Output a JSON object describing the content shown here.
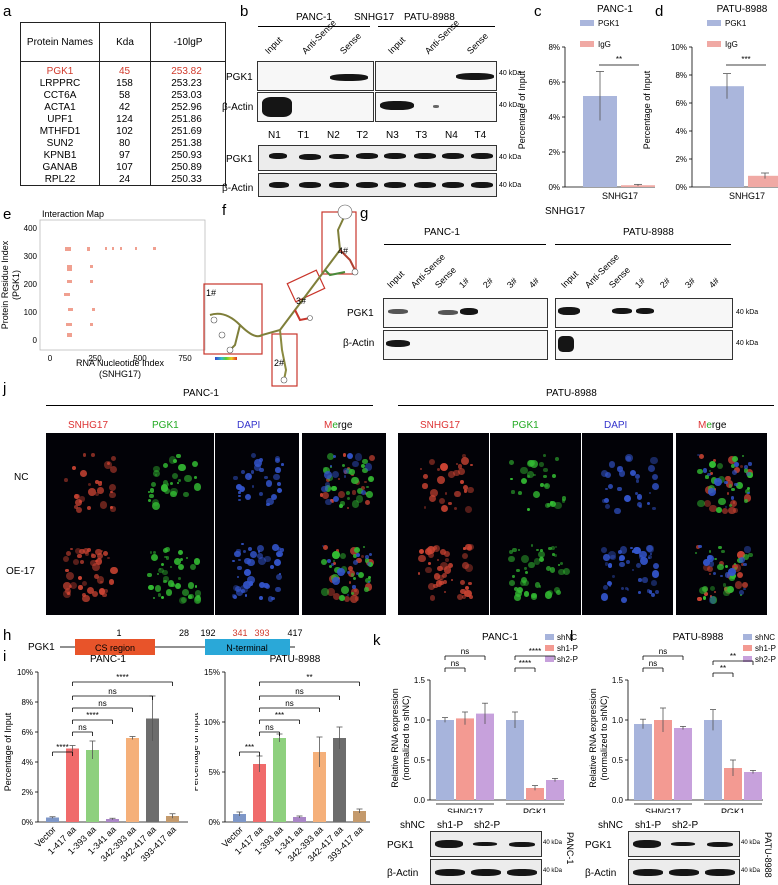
{
  "panel_letters": {
    "a": "a",
    "b": "b",
    "c": "c",
    "d": "d",
    "e": "e",
    "f": "f",
    "g": "g",
    "h": "h",
    "i": "i",
    "j": "j",
    "k": "k",
    "l": "l"
  },
  "table": {
    "headers": [
      "Protein Names",
      "Kda",
      "-10lgP"
    ],
    "rows": [
      [
        "PGK1",
        "45",
        "253.82"
      ],
      [
        "LRPPRC",
        "158",
        "253.23"
      ],
      [
        "CCT6A",
        "58",
        "253.03"
      ],
      [
        "ACTA1",
        "42",
        "252.96"
      ],
      [
        "UPF1",
        "124",
        "251.86"
      ],
      [
        "MTHFD1",
        "102",
        "251.69"
      ],
      [
        "SUN2",
        "80",
        "251.38"
      ],
      [
        "KPNB1",
        "97",
        "250.93"
      ],
      [
        "GANAB",
        "107",
        "250.89"
      ],
      [
        "RPL22",
        "24",
        "250.33"
      ]
    ],
    "highlight_color": "#d0392b"
  },
  "panel_b": {
    "title": "SNHG17",
    "cell_left": "PANC-1",
    "cell_right": "PATU-8988",
    "lanes": [
      "Input",
      "Anti-Sense",
      "Sense",
      "Input",
      "Anti-Sense",
      "Sense"
    ],
    "row1": "PGK1",
    "row2": "β-Actin",
    "kda": "40 kDa",
    "tissue_lanes": [
      "N1",
      "T1",
      "N2",
      "T2",
      "N3",
      "T3",
      "N4",
      "T4"
    ]
  },
  "panel_c": {
    "title": "PANC-1",
    "ylabel": "Percentage of Input",
    "xlabel": "SNHG17",
    "legend": [
      "PGK1",
      "IgG"
    ],
    "sig": "**",
    "yticks": [
      "0%",
      "2%",
      "4%",
      "6%",
      "8%"
    ]
  },
  "panel_d": {
    "title": "PATU-8988",
    "ylabel": "Percentage of Input",
    "xlabel": "SNHG17",
    "legend": [
      "PGK1",
      "IgG"
    ],
    "sig": "***",
    "yticks": [
      "0%",
      "2%",
      "4%",
      "6%",
      "8%",
      "10%"
    ]
  },
  "panel_e": {
    "title": "Interaction Map",
    "ylabel1": "Protein Residue Index",
    "ylabel2": "(PGK1)",
    "xlabel1": "RNA Nucleotide Index",
    "xlabel2": "(SNHG17)",
    "xticks": [
      "0",
      "250",
      "500",
      "750"
    ],
    "yticks": [
      "0",
      "100",
      "200",
      "300",
      "400"
    ]
  },
  "panel_f": {
    "labels": [
      "1#",
      "2#",
      "3#",
      "4#"
    ]
  },
  "panel_g": {
    "title": "SNHG17",
    "cell_left": "PANC-1",
    "cell_right": "PATU-8988",
    "lanes": [
      "Input",
      "Anti-Sense",
      "Sense",
      "1#",
      "2#",
      "3#",
      "4#"
    ],
    "row1": "PGK1",
    "row2": "β-Actin",
    "kda": "40 kDa"
  },
  "panel_j": {
    "cell_left": "PANC-1",
    "cell_right": "PATU-8988",
    "channels": [
      "SNHG17",
      "PGK1",
      "DAPI",
      "Merge"
    ],
    "rows": [
      "NC",
      "OE-17"
    ],
    "merge_letters": [
      "M",
      "e",
      "r",
      "g",
      "e"
    ]
  },
  "panel_h": {
    "protein": "PGK1",
    "ticks": [
      "1",
      "28",
      "192",
      "341",
      "393",
      "417"
    ],
    "domains": [
      "CS region",
      "N-terminal"
    ]
  },
  "panel_i": {
    "left_title": "PANC-1",
    "right_title": "PATU-8988",
    "ylabel": "Percentage of Input",
    "categories": [
      "Vector",
      "1-417 aa",
      "1-393 aa",
      "1-341 aa",
      "342-393 aa",
      "342-417 aa",
      "393-417 aa"
    ],
    "left_yticks": [
      "0%",
      "2%",
      "4%",
      "6%",
      "8%",
      "10%"
    ],
    "right_yticks": [
      "0%",
      "5%",
      "10%",
      "15%"
    ],
    "left_sig": [
      "****",
      "ns",
      "****",
      "ns",
      "ns",
      "****"
    ],
    "right_sig": [
      "***",
      "ns",
      "***",
      "ns",
      "ns",
      "**"
    ]
  },
  "panel_k": {
    "title": "PANC-1",
    "ylabel1": "Relative RNA expression",
    "ylabel2": "(normalized to shNC)",
    "groups": [
      "SHNG17",
      "PGK1"
    ],
    "legend": [
      "shNC",
      "sh1-P",
      "sh2-P"
    ],
    "yticks": [
      "0.0",
      "0.5",
      "1.0",
      "1.5"
    ],
    "sig": [
      "ns",
      "ns",
      "****",
      "****"
    ],
    "blot_lanes": [
      "shNC",
      "sh1-P",
      "sh2-P"
    ],
    "blot_rows": [
      "PGK1",
      "β-Actin"
    ],
    "kda": "40 kDa",
    "side": "PANC-1"
  },
  "panel_l": {
    "title": "PATU-8988",
    "ylabel1": "Relative RNA expression",
    "ylabel2": "(normalized to shNC)",
    "groups": [
      "SHNG17",
      "PGK1"
    ],
    "legend": [
      "shNC",
      "sh1-P",
      "sh2-P"
    ],
    "yticks": [
      "0.0",
      "0.5",
      "1.0",
      "1.5"
    ],
    "sig": [
      "ns",
      "ns",
      "**",
      "**"
    ],
    "blot_lanes": [
      "shNC",
      "sh1-P",
      "sh2-P"
    ],
    "blot_rows": [
      "PGK1",
      "β-Actin"
    ],
    "kda": "40 kDa",
    "side": "PATU-8988"
  },
  "chart_data": [
    {
      "type": "bar",
      "panel": "c",
      "title": "PANC-1",
      "categories": [
        "SNHG17"
      ],
      "series": [
        {
          "name": "PGK1",
          "values": [
            5.2
          ],
          "error": [
            1.4
          ]
        },
        {
          "name": "IgG",
          "values": [
            0.1
          ],
          "error": [
            0.05
          ]
        }
      ],
      "ylabel": "Percentage of Input",
      "ylim": [
        0,
        8
      ],
      "colors": [
        "#aab6dc",
        "#f0a9a4"
      ]
    },
    {
      "type": "bar",
      "panel": "d",
      "title": "PATU-8988",
      "categories": [
        "SNHG17"
      ],
      "series": [
        {
          "name": "PGK1",
          "values": [
            7.2
          ],
          "error": [
            0.9
          ]
        },
        {
          "name": "IgG",
          "values": [
            0.8
          ],
          "error": [
            0.2
          ]
        }
      ],
      "ylabel": "Percentage of Input",
      "ylim": [
        0,
        10
      ],
      "colors": [
        "#aab6dc",
        "#f0a9a4"
      ]
    },
    {
      "type": "bar",
      "panel": "i-left",
      "title": "PANC-1",
      "categories": [
        "Vector",
        "1-417 aa",
        "1-393 aa",
        "1-341 aa",
        "342-393 aa",
        "342-417 aa",
        "393-417 aa"
      ],
      "values": [
        0.3,
        4.9,
        4.8,
        0.2,
        5.6,
        6.9,
        0.4
      ],
      "errors": [
        0.05,
        0.2,
        0.6,
        0.05,
        0.1,
        1.5,
        0.15
      ],
      "ylim": [
        0,
        10
      ],
      "colors": [
        "#7e97c8",
        "#f06b6b",
        "#8ed07e",
        "#a985c6",
        "#f5b07a",
        "#6d6d6d",
        "#c49a6c"
      ]
    },
    {
      "type": "bar",
      "panel": "i-right",
      "title": "PATU-8988",
      "categories": [
        "Vector",
        "1-417 aa",
        "1-393 aa",
        "1-341 aa",
        "342-393 aa",
        "342-417 aa",
        "393-417 aa"
      ],
      "values": [
        0.8,
        5.8,
        8.4,
        0.5,
        7.0,
        8.4,
        1.1
      ],
      "errors": [
        0.2,
        0.8,
        0.4,
        0.1,
        1.5,
        1.1,
        0.2
      ],
      "ylim": [
        0,
        15
      ],
      "colors": [
        "#7e97c8",
        "#f06b6b",
        "#8ed07e",
        "#a985c6",
        "#f5b07a",
        "#6d6d6d",
        "#c49a6c"
      ]
    },
    {
      "type": "bar",
      "panel": "k",
      "title": "PANC-1",
      "categories": [
        "SHNG17",
        "PGK1"
      ],
      "series": [
        {
          "name": "shNC",
          "values": [
            1.0,
            1.0
          ],
          "error": [
            0.03,
            0.1
          ]
        },
        {
          "name": "sh1-P",
          "values": [
            1.02,
            0.15
          ],
          "error": [
            0.08,
            0.03
          ]
        },
        {
          "name": "sh2-P",
          "values": [
            1.08,
            0.25
          ],
          "error": [
            0.13,
            0.02
          ]
        }
      ],
      "ylim": [
        0,
        1.5
      ],
      "colors": [
        "#a7b4dc",
        "#f39a92",
        "#c7a1dc"
      ]
    },
    {
      "type": "bar",
      "panel": "l",
      "title": "PATU-8988",
      "categories": [
        "SHNG17",
        "PGK1"
      ],
      "series": [
        {
          "name": "shNC",
          "values": [
            0.95,
            1.0
          ],
          "error": [
            0.06,
            0.13
          ]
        },
        {
          "name": "sh1-P",
          "values": [
            1.0,
            0.4
          ],
          "error": [
            0.15,
            0.1
          ]
        },
        {
          "name": "sh2-P",
          "values": [
            0.9,
            0.35
          ],
          "error": [
            0.02,
            0.02
          ]
        }
      ],
      "ylim": [
        0,
        1.5
      ],
      "colors": [
        "#a7b4dc",
        "#f39a92",
        "#c7a1dc"
      ]
    },
    {
      "type": "scatter",
      "panel": "e",
      "title": "Interaction Map",
      "xlim": [
        0,
        900
      ],
      "ylim": [
        0,
        400
      ]
    }
  ]
}
